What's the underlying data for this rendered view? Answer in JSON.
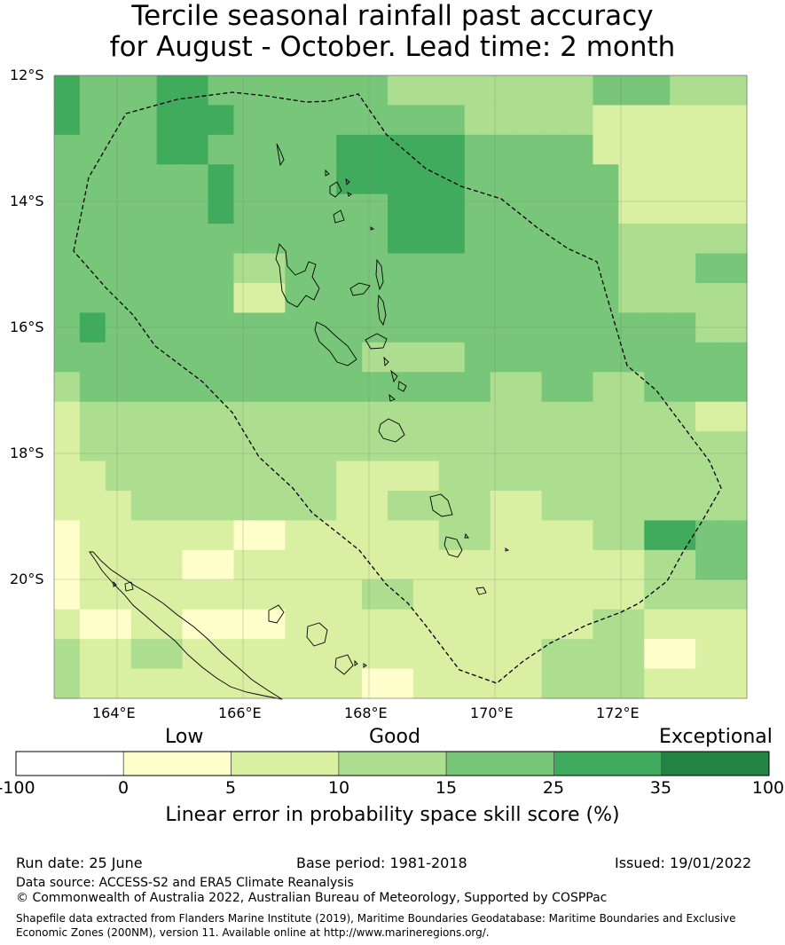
{
  "title": {
    "line1": "Tercile seasonal rainfall past accuracy",
    "line2": "for August - October. Lead time: 2 month"
  },
  "map": {
    "lat_labels": [
      "12°S",
      "14°S",
      "16°S",
      "18°S",
      "20°S"
    ],
    "lon_labels": [
      "164°E",
      "166°E",
      "168°E",
      "170°E",
      "172°E"
    ],
    "grid_values": [
      [
        25,
        15,
        15,
        15,
        25,
        25,
        15,
        15,
        15,
        15,
        15,
        15,
        15,
        10,
        10,
        10,
        10,
        10,
        10,
        10,
        10,
        15,
        15,
        15,
        10,
        10,
        10
      ],
      [
        25,
        15,
        15,
        15,
        25,
        25,
        25,
        15,
        15,
        15,
        15,
        15,
        15,
        15,
        15,
        15,
        10,
        10,
        10,
        10,
        10,
        5,
        5,
        5,
        5,
        5,
        5
      ],
      [
        15,
        15,
        15,
        15,
        25,
        25,
        15,
        15,
        15,
        15,
        15,
        25,
        25,
        25,
        25,
        25,
        15,
        15,
        15,
        15,
        15,
        5,
        5,
        5,
        5,
        5,
        5
      ],
      [
        15,
        15,
        15,
        15,
        15,
        15,
        25,
        15,
        15,
        15,
        15,
        25,
        25,
        25,
        25,
        25,
        15,
        15,
        15,
        15,
        15,
        15,
        5,
        5,
        5,
        5,
        5
      ],
      [
        15,
        15,
        15,
        15,
        15,
        15,
        25,
        15,
        15,
        15,
        15,
        15,
        15,
        25,
        25,
        25,
        15,
        15,
        15,
        15,
        15,
        15,
        5,
        5,
        5,
        5,
        5
      ],
      [
        15,
        15,
        15,
        15,
        15,
        15,
        15,
        15,
        15,
        15,
        15,
        15,
        15,
        25,
        25,
        25,
        15,
        15,
        15,
        15,
        15,
        15,
        10,
        10,
        10,
        10,
        10
      ],
      [
        15,
        15,
        15,
        15,
        15,
        15,
        15,
        10,
        10,
        15,
        15,
        15,
        15,
        15,
        15,
        15,
        15,
        15,
        15,
        15,
        15,
        15,
        10,
        10,
        10,
        15,
        15
      ],
      [
        15,
        15,
        15,
        15,
        15,
        15,
        15,
        5,
        5,
        15,
        15,
        15,
        15,
        15,
        15,
        15,
        15,
        15,
        15,
        15,
        15,
        15,
        10,
        10,
        10,
        10,
        10
      ],
      [
        15,
        25,
        15,
        15,
        15,
        15,
        15,
        15,
        15,
        15,
        15,
        15,
        15,
        15,
        15,
        15,
        15,
        15,
        15,
        15,
        15,
        15,
        15,
        15,
        15,
        10,
        10
      ],
      [
        15,
        15,
        15,
        15,
        15,
        15,
        15,
        15,
        15,
        15,
        15,
        15,
        10,
        10,
        10,
        10,
        15,
        15,
        15,
        15,
        15,
        15,
        15,
        15,
        15,
        15,
        15
      ],
      [
        10,
        15,
        15,
        15,
        15,
        15,
        15,
        15,
        15,
        15,
        15,
        15,
        15,
        15,
        15,
        15,
        15,
        10,
        10,
        15,
        15,
        10,
        10,
        15,
        15,
        15,
        15
      ],
      [
        5,
        10,
        10,
        10,
        10,
        10,
        10,
        10,
        10,
        10,
        10,
        10,
        10,
        10,
        10,
        10,
        10,
        10,
        10,
        10,
        10,
        10,
        10,
        10,
        10,
        5,
        5
      ],
      [
        5,
        10,
        10,
        10,
        10,
        10,
        10,
        10,
        10,
        10,
        10,
        10,
        10,
        10,
        10,
        10,
        10,
        10,
        10,
        10,
        10,
        10,
        10,
        10,
        10,
        10,
        10
      ],
      [
        5,
        5,
        10,
        10,
        10,
        10,
        10,
        10,
        10,
        10,
        10,
        5,
        5,
        5,
        5,
        10,
        10,
        10,
        10,
        10,
        10,
        10,
        10,
        10,
        10,
        10,
        10
      ],
      [
        5,
        5,
        5,
        10,
        10,
        10,
        10,
        10,
        10,
        10,
        10,
        5,
        5,
        10,
        10,
        10,
        10,
        5,
        5,
        10,
        10,
        10,
        10,
        10,
        10,
        10,
        10
      ],
      [
        0,
        5,
        5,
        5,
        5,
        5,
        5,
        0,
        0,
        5,
        5,
        5,
        5,
        5,
        5,
        10,
        10,
        5,
        5,
        5,
        5,
        10,
        10,
        25,
        25,
        15,
        15
      ],
      [
        0,
        5,
        5,
        5,
        5,
        0,
        0,
        5,
        5,
        5,
        5,
        5,
        5,
        5,
        5,
        5,
        5,
        5,
        5,
        5,
        5,
        5,
        5,
        10,
        10,
        15,
        15
      ],
      [
        0,
        5,
        5,
        5,
        5,
        5,
        5,
        5,
        5,
        5,
        5,
        5,
        10,
        10,
        5,
        5,
        5,
        5,
        5,
        5,
        5,
        5,
        5,
        10,
        10,
        10,
        10
      ],
      [
        5,
        0,
        0,
        5,
        5,
        0,
        0,
        0,
        0,
        5,
        5,
        5,
        5,
        5,
        5,
        5,
        5,
        5,
        5,
        5,
        5,
        10,
        10,
        5,
        5,
        5,
        5
      ],
      [
        10,
        5,
        5,
        10,
        10,
        5,
        5,
        5,
        5,
        5,
        5,
        5,
        5,
        5,
        5,
        5,
        5,
        5,
        5,
        10,
        10,
        10,
        10,
        0,
        0,
        5,
        5
      ],
      [
        10,
        5,
        5,
        5,
        5,
        5,
        5,
        5,
        5,
        5,
        5,
        5,
        0,
        0,
        5,
        5,
        5,
        5,
        5,
        10,
        10,
        10,
        10,
        5,
        5,
        5,
        5
      ]
    ]
  },
  "colorbar": {
    "categories": [
      "Low",
      "Good",
      "Exceptional"
    ],
    "ticks": [
      "-100",
      "0",
      "5",
      "10",
      "15",
      "25",
      "35",
      "100"
    ],
    "colors": [
      "#ffffff",
      "#ffffcc",
      "#d9f0a3",
      "#addd8e",
      "#78c679",
      "#41ab5d",
      "#238443"
    ],
    "label": "Linear error in probability space skill score (%)"
  },
  "footer": {
    "run_date": "Run date: 25 June",
    "base_period": "Base period: 1981-2018",
    "issued": "Issued: 19/01/2022",
    "data_source": "Data source: ACCESS-S2 and ERA5 Climate Reanalysis",
    "copyright": "© Commonwealth of Australia 2022, Australian Bureau of Meteorology, Supported by COSPPac",
    "shapefile_line1": "Shapefile data extracted from Flanders Marine Institute (2019), Maritime Boundaries Geodatabase: Maritime Boundaries and Exclusive",
    "shapefile_line2": "Economic Zones (200NM), version 11. Available online at http://www.marineregions.org/."
  }
}
